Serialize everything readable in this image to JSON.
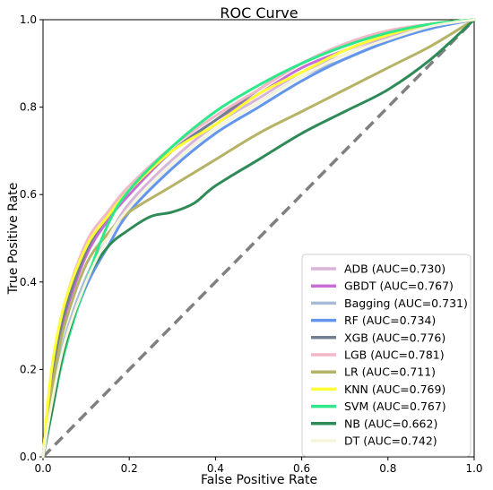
{
  "chart_data": {
    "type": "line",
    "title": "ROC Curve",
    "xlabel": "False Positive Rate",
    "ylabel": "True Positive Rate",
    "xlim": [
      0.0,
      1.0
    ],
    "ylim": [
      0.0,
      1.0
    ],
    "xticks": [
      "0.0",
      "0.2",
      "0.4",
      "0.6",
      "0.8",
      "1.0"
    ],
    "yticks": [
      "0.0",
      "0.2",
      "0.4",
      "0.6",
      "0.8",
      "1.0"
    ],
    "grid": false,
    "legend_position": "lower-right",
    "diagonal": {
      "color": "#808080",
      "style": "dashed"
    },
    "series": [
      {
        "name": "ADB (AUC=0.730)",
        "color": "#d8b4d8",
        "x": [
          0,
          0.02,
          0.05,
          0.1,
          0.15,
          0.2,
          0.3,
          0.4,
          0.5,
          0.6,
          0.7,
          0.8,
          0.9,
          1.0
        ],
        "y": [
          0,
          0.14,
          0.27,
          0.41,
          0.5,
          0.58,
          0.68,
          0.76,
          0.82,
          0.88,
          0.92,
          0.96,
          0.985,
          1.0
        ]
      },
      {
        "name": "GBDT (AUC=0.767)",
        "color": "#c86dd7",
        "x": [
          0,
          0.02,
          0.05,
          0.1,
          0.15,
          0.2,
          0.3,
          0.4,
          0.5,
          0.6,
          0.7,
          0.8,
          0.9,
          1.0
        ],
        "y": [
          0,
          0.18,
          0.32,
          0.46,
          0.54,
          0.6,
          0.7,
          0.77,
          0.83,
          0.89,
          0.93,
          0.965,
          0.99,
          1.0
        ]
      },
      {
        "name": "Bagging (AUC=0.731)",
        "color": "#a7bcd6",
        "x": [
          0,
          0.02,
          0.05,
          0.1,
          0.15,
          0.2,
          0.3,
          0.4,
          0.5,
          0.6,
          0.7,
          0.8,
          0.9,
          1.0
        ],
        "y": [
          0,
          0.13,
          0.27,
          0.41,
          0.5,
          0.57,
          0.67,
          0.75,
          0.81,
          0.87,
          0.91,
          0.95,
          0.98,
          1.0
        ]
      },
      {
        "name": "RF (AUC=0.734)",
        "color": "#6495ed",
        "x": [
          0,
          0.02,
          0.05,
          0.1,
          0.15,
          0.2,
          0.3,
          0.4,
          0.5,
          0.6,
          0.7,
          0.8,
          0.9,
          1.0
        ],
        "y": [
          0,
          0.12,
          0.25,
          0.39,
          0.48,
          0.56,
          0.66,
          0.74,
          0.8,
          0.86,
          0.91,
          0.95,
          0.98,
          1.0
        ]
      },
      {
        "name": "XGB (AUC=0.776)",
        "color": "#708090",
        "x": [
          0,
          0.02,
          0.05,
          0.1,
          0.15,
          0.2,
          0.3,
          0.4,
          0.5,
          0.6,
          0.7,
          0.8,
          0.9,
          1.0
        ],
        "y": [
          0,
          0.18,
          0.33,
          0.47,
          0.55,
          0.61,
          0.7,
          0.77,
          0.84,
          0.9,
          0.94,
          0.97,
          0.99,
          1.0
        ]
      },
      {
        "name": "LGB (AUC=0.781)",
        "color": "#f2b8c6",
        "x": [
          0,
          0.02,
          0.05,
          0.1,
          0.15,
          0.2,
          0.3,
          0.4,
          0.5,
          0.6,
          0.7,
          0.8,
          0.9,
          1.0
        ],
        "y": [
          0,
          0.2,
          0.35,
          0.49,
          0.56,
          0.62,
          0.71,
          0.78,
          0.84,
          0.9,
          0.945,
          0.975,
          0.99,
          1.0
        ]
      },
      {
        "name": "LR (AUC=0.711)",
        "color": "#b6b266",
        "x": [
          0,
          0.02,
          0.05,
          0.1,
          0.15,
          0.2,
          0.3,
          0.4,
          0.5,
          0.6,
          0.7,
          0.8,
          0.9,
          1.0
        ],
        "y": [
          0,
          0.15,
          0.3,
          0.44,
          0.51,
          0.56,
          0.62,
          0.68,
          0.74,
          0.79,
          0.84,
          0.89,
          0.94,
          1.0
        ]
      },
      {
        "name": "KNN (AUC=0.769)",
        "color": "#ffff33",
        "x": [
          0,
          0.02,
          0.05,
          0.1,
          0.15,
          0.2,
          0.3,
          0.4,
          0.5,
          0.6,
          0.7,
          0.8,
          0.9,
          1.0
        ],
        "y": [
          0,
          0.2,
          0.35,
          0.48,
          0.55,
          0.61,
          0.7,
          0.76,
          0.83,
          0.88,
          0.93,
          0.965,
          0.99,
          1.0
        ]
      },
      {
        "name": "SVM (AUC=0.767)",
        "color": "#2ee88a",
        "x": [
          0,
          0.02,
          0.05,
          0.1,
          0.15,
          0.2,
          0.3,
          0.4,
          0.5,
          0.6,
          0.7,
          0.8,
          0.9,
          1.0
        ],
        "y": [
          0,
          0.1,
          0.24,
          0.4,
          0.53,
          0.61,
          0.71,
          0.79,
          0.85,
          0.9,
          0.94,
          0.97,
          0.99,
          1.0
        ]
      },
      {
        "name": "NB (AUC=0.662)",
        "color": "#2e8b57",
        "x": [
          0,
          0.02,
          0.05,
          0.1,
          0.15,
          0.2,
          0.25,
          0.3,
          0.35,
          0.4,
          0.5,
          0.6,
          0.7,
          0.8,
          0.9,
          1.0
        ],
        "y": [
          0,
          0.1,
          0.25,
          0.4,
          0.48,
          0.52,
          0.55,
          0.56,
          0.58,
          0.62,
          0.68,
          0.74,
          0.79,
          0.84,
          0.91,
          1.0
        ]
      },
      {
        "name": "DT (AUC=0.742)",
        "color": "#f5f5dc",
        "x": [
          0,
          0.02,
          0.05,
          0.1,
          0.15,
          0.2,
          0.3,
          0.4,
          0.5,
          0.6,
          0.7,
          0.8,
          0.9,
          1.0
        ],
        "y": [
          0,
          0.12,
          0.26,
          0.4,
          0.5,
          0.57,
          0.67,
          0.75,
          0.81,
          0.87,
          0.92,
          0.955,
          0.985,
          1.0
        ]
      }
    ]
  }
}
